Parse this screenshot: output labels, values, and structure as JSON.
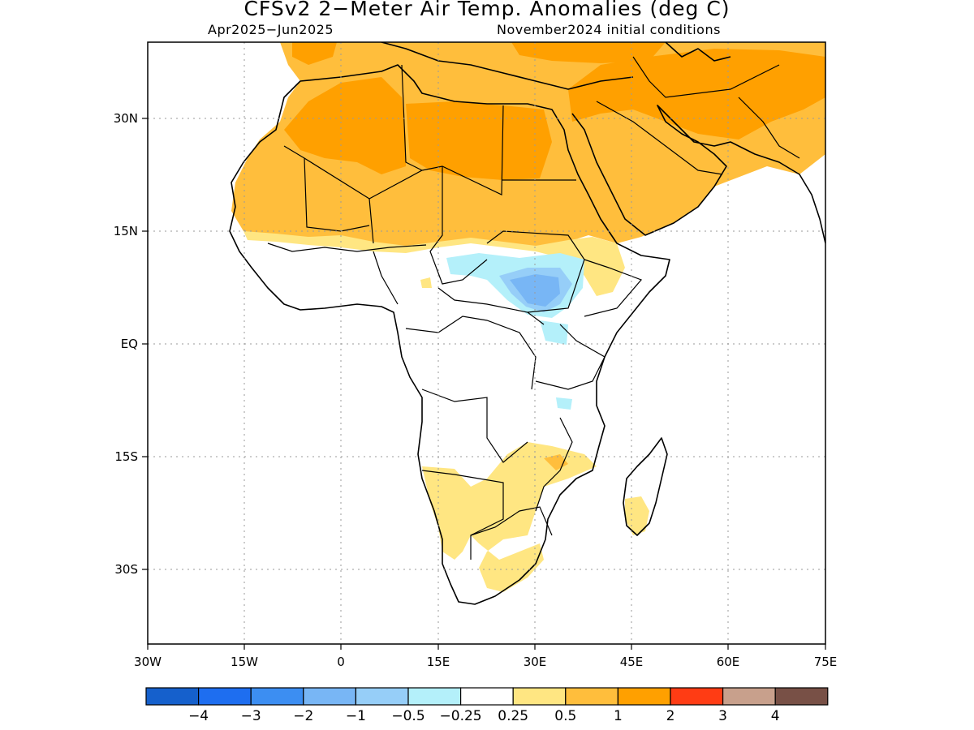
{
  "title": "CFSv2 2−Meter Air Temp. Anomalies (deg C)",
  "subtitle_left": "Apr2025−Jun2025",
  "subtitle_right": "November2024 initial conditions",
  "lon_labels": [
    "30W",
    "15W",
    "0",
    "15E",
    "30E",
    "45E",
    "60E",
    "75E"
  ],
  "lat_labels": [
    "30N",
    "15N",
    "EQ",
    "15S",
    "30S"
  ],
  "lon_values": [
    -30,
    -15,
    0,
    15,
    30,
    45,
    60,
    75
  ],
  "lat_values": [
    30,
    15,
    0,
    -15,
    -30
  ],
  "extent": {
    "lon_min": -30,
    "lon_max": 75,
    "lat_min": -40,
    "lat_max": 40
  },
  "colorbar": {
    "colors": [
      "#1560cc",
      "#1e6ef0",
      "#3c8ef2",
      "#78b6f5",
      "#96cef8",
      "#b4f0fa",
      "#ffffff",
      "#ffe682",
      "#ffbe3c",
      "#ffa000",
      "#ff3c14",
      "#c8a08c",
      "#785046"
    ],
    "labels": [
      "−4",
      "−3",
      "−2",
      "−1",
      "−0.5",
      "−0.25",
      "0.25",
      "0.5",
      "1",
      "2",
      "3",
      "4"
    ]
  },
  "colors": {
    "strong_warm": "#ffa000",
    "warm": "#ffbe3c",
    "mild_warm": "#ffe682",
    "mild_cool": "#b4f0fa",
    "cool": "#96cef8",
    "cooler": "#78b6f5",
    "border": "#000000",
    "grid": "#9a9a9a"
  }
}
